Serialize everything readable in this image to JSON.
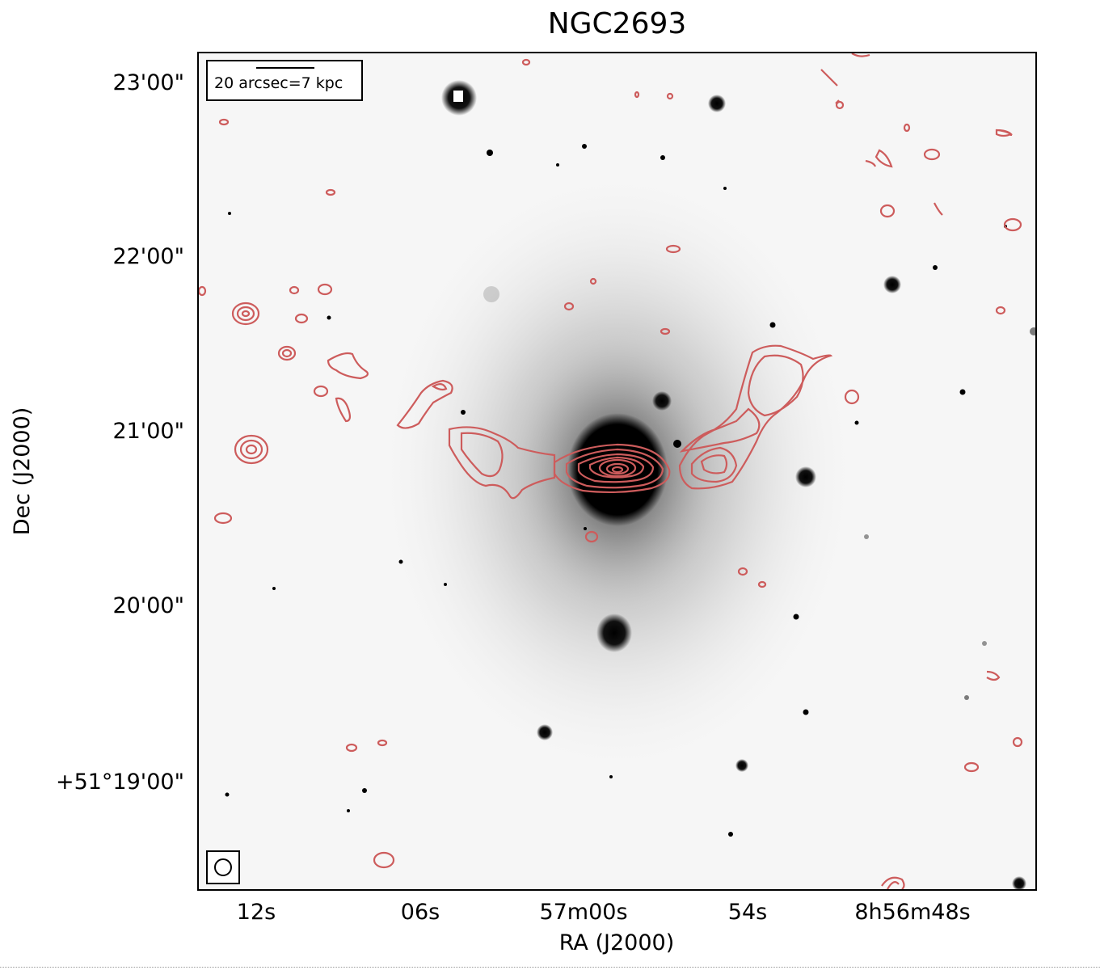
{
  "title": "NGC2693",
  "axes": {
    "xlabel": "RA (J2000)",
    "ylabel": "Dec (J2000)",
    "xticks": [
      "12s",
      "06s",
      "57m00s",
      "54s",
      "8h56m48s"
    ],
    "yticks": [
      "23'00\"",
      "22'00\"",
      "21'00\"",
      "20'00\"",
      "+51°19'00\""
    ]
  },
  "scale_bar": {
    "label": "20 arcsec=7 kpc"
  },
  "beam_marker": {
    "shape": "circle"
  },
  "colors": {
    "contour": "#cd5c5c",
    "background": "#f6f6f6",
    "sources": "#000000"
  }
}
